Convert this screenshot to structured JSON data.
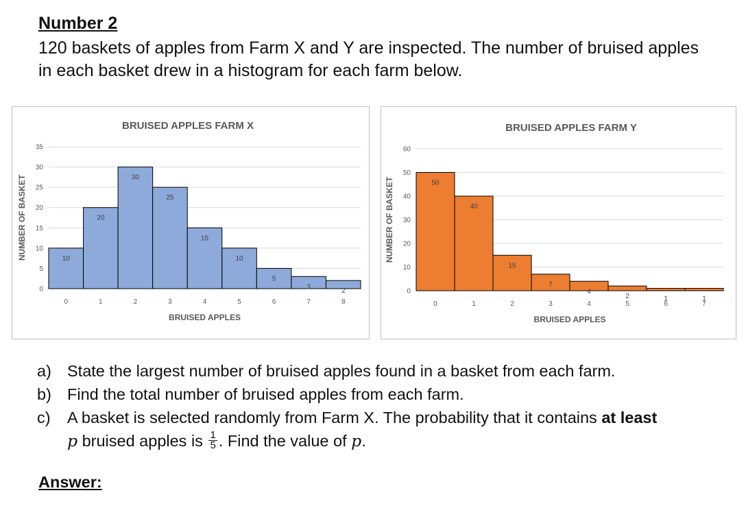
{
  "question": {
    "header": "Number 2",
    "intro": "120 baskets of apples from Farm X and Y are inspected. The number of bruised apples in each basket drew in a histogram for each farm below.",
    "parts": [
      {
        "letter": "a)",
        "text": "State the largest number of bruised apples found in a basket from each farm."
      },
      {
        "letter": "b)",
        "text": "Find the total number of bruised apples from each farm."
      },
      {
        "letter": "c)",
        "text_before_bold": "A basket is selected randomly from Farm X. The probability that it contains ",
        "bold": "at least",
        "variable": "p",
        "text_mid": " bruised apples is ",
        "frac_num": "1",
        "frac_den": "5",
        "text_end": ". Find the value of ",
        "variable_end": "p",
        "end_punct": "."
      }
    ],
    "answer_label": "Answer:"
  },
  "chart_data": [
    {
      "type": "bar",
      "title": "BRUISED APPLES FARM X",
      "xlabel": "BRUISED APPLES",
      "ylabel": "NUMBER OF BASKET",
      "categories": [
        "0",
        "1",
        "2",
        "3",
        "4",
        "5",
        "6",
        "7",
        "8"
      ],
      "values": [
        10,
        20,
        30,
        25,
        15,
        10,
        5,
        3,
        2
      ],
      "ylim": [
        0,
        35
      ],
      "yticks": [
        0,
        5,
        10,
        15,
        20,
        25,
        30,
        35
      ],
      "grid": true,
      "color": "#8eaadb",
      "edge_color": "#000000"
    },
    {
      "type": "bar",
      "title": "BRUISED APPLES FARM Y",
      "xlabel": "BRUISED APPLES",
      "ylabel": "NUMBER OF BASKET",
      "categories": [
        "0",
        "1",
        "2",
        "3",
        "4",
        "5",
        "6",
        "7"
      ],
      "values": [
        50,
        40,
        15,
        7,
        4,
        2,
        1,
        1
      ],
      "ylim": [
        0,
        60
      ],
      "yticks": [
        0,
        10,
        20,
        30,
        40,
        50,
        60
      ],
      "grid": true,
      "color": "#ed7d31",
      "edge_color": "#000000"
    }
  ]
}
